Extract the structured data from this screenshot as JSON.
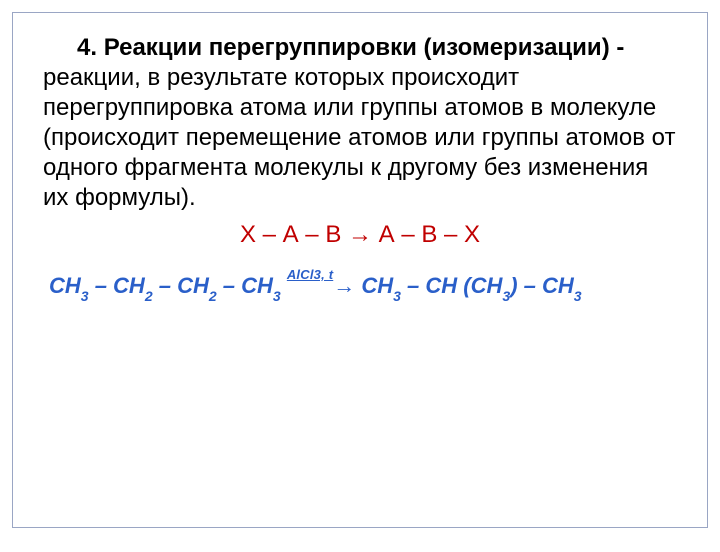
{
  "colors": {
    "text": "#000000",
    "accent_red": "#c00000",
    "accent_blue": "#2a5fc9",
    "frame_border": "#9aa6c4",
    "background": "#ffffff"
  },
  "typography": {
    "body_fontsize_pt": 18,
    "scheme_fontsize_pt": 18,
    "equation_fontsize_pt": 16,
    "condition_fontsize_pt": 10,
    "subscript_fontsize_pt": 10,
    "font_family": "Arial"
  },
  "heading": {
    "number": "4.",
    "title_bold": "Реакции перегруппировки (изомеризации) -",
    "body_rest": " реакции, в результате которых происходит перегруппировка атома или группы атомов в молекуле (происходит перемещение атомов или группы атомов от одного фрагмента молекулы к другому без изменения их формулы)."
  },
  "scheme": {
    "text": "Х – А – В → А – В – Х"
  },
  "equation": {
    "lhs_parts": [
      "СН",
      "3",
      " – СН",
      "2",
      " – СН",
      "2",
      " – СН",
      "3",
      " "
    ],
    "condition": "АlСl3, t",
    "arrow": "→ ",
    "rhs_parts": [
      "СН",
      "3",
      " – СН (СН",
      "3",
      ") – СН",
      "3"
    ]
  }
}
